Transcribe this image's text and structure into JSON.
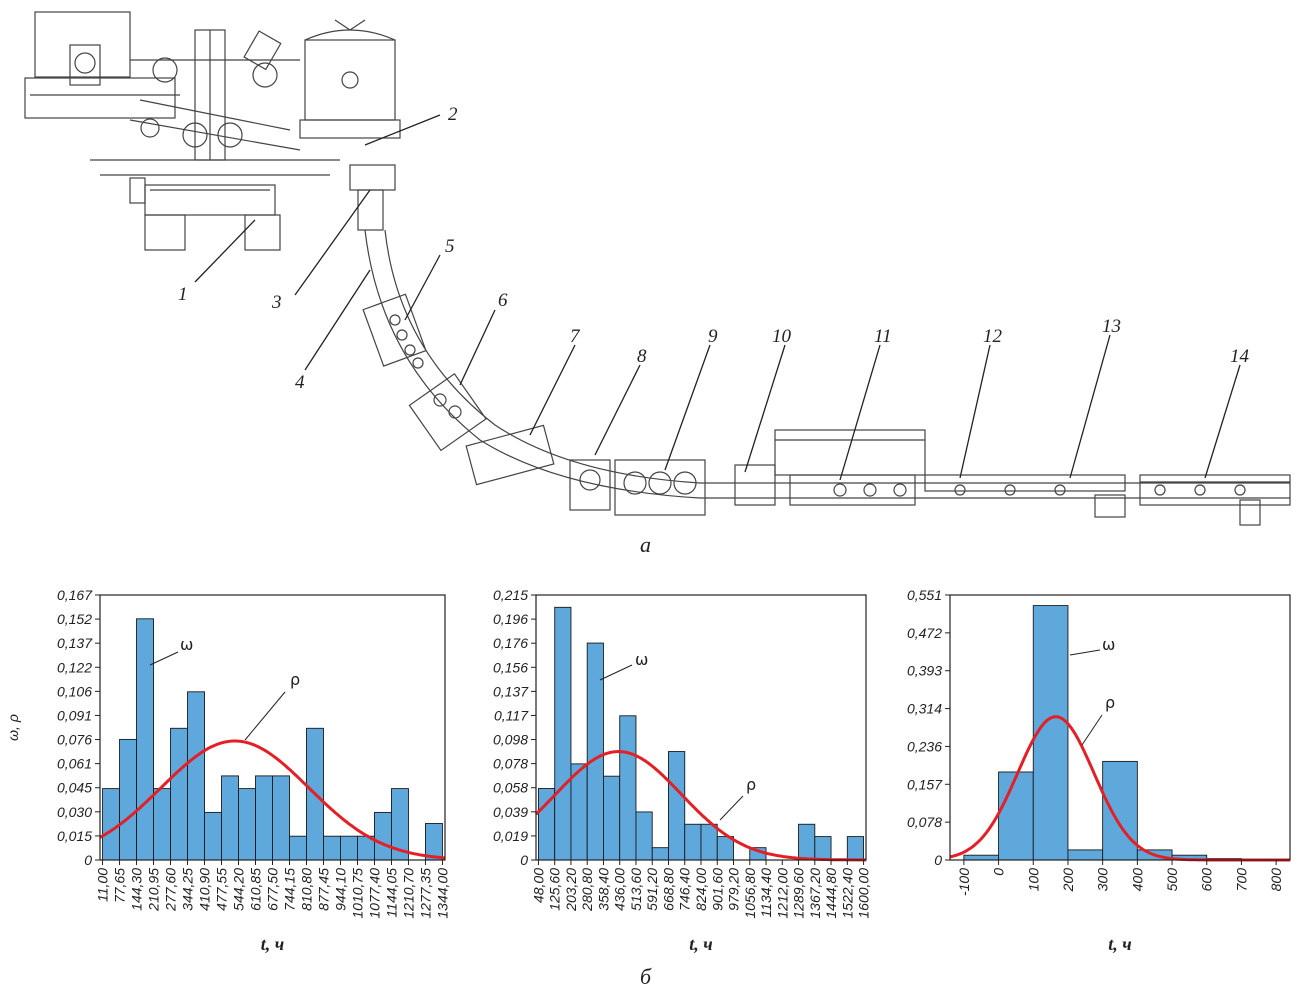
{
  "scheme": {
    "panel_label": "а",
    "callouts": [
      "1",
      "2",
      "3",
      "4",
      "5",
      "6",
      "7",
      "8",
      "9",
      "10",
      "11",
      "12",
      "13",
      "14"
    ]
  },
  "panel_b_label": "б",
  "colors": {
    "bars": "#5fa8dc",
    "bar_stroke": "#1a1a1a",
    "curve": "#e41f26",
    "axes": "#222222"
  },
  "chart_data": [
    {
      "type": "bar",
      "ylabel": "ω, ρ",
      "xlabel": "t, ч",
      "ylim": [
        0,
        0.167
      ],
      "yticks": [
        "0",
        "0,015",
        "0,030",
        "0,045",
        "0,061",
        "0,076",
        "0,091",
        "0,106",
        "0,122",
        "0,137",
        "0,152",
        "0,167"
      ],
      "xticks": [
        "11,00",
        "77,65",
        "144,30",
        "210,95",
        "277,60",
        "344,25",
        "410,90",
        "477,55",
        "544,20",
        "610,85",
        "677,50",
        "744,15",
        "810,80",
        "877,45",
        "944,10",
        "1010,75",
        "1077,40",
        "1144,05",
        "1210,70",
        "1277,35",
        "1344,00"
      ],
      "series": [
        {
          "name": "ω",
          "values": [
            0.045,
            0.076,
            0.152,
            0.045,
            0.083,
            0.106,
            0.03,
            0.053,
            0.045,
            0.053,
            0.053,
            0.015,
            0.083,
            0.015,
            0.015,
            0.015,
            0.03,
            0.045,
            0,
            0.023
          ]
        }
      ],
      "curve": {
        "name": "ρ",
        "mean": 530,
        "sd": 290,
        "peak": 0.075
      }
    },
    {
      "type": "bar",
      "ylabel": "",
      "xlabel": "t, ч",
      "ylim": [
        0,
        0.215
      ],
      "yticks": [
        "0",
        "0,019",
        "0,039",
        "0,058",
        "0,078",
        "0,098",
        "0,117",
        "0,137",
        "0,156",
        "0,176",
        "0,196",
        "0,215"
      ],
      "xticks": [
        "48,00",
        "125,60",
        "203,20",
        "280,80",
        "358,40",
        "436,00",
        "513,60",
        "591,20",
        "668,80",
        "746,40",
        "824,00",
        "901,60",
        "979,20",
        "1056,80",
        "1134,40",
        "1212,00",
        "1289,60",
        "1367,20",
        "1444,80",
        "1522,40",
        "1600,00"
      ],
      "series": [
        {
          "name": "ω",
          "values": [
            0.058,
            0.205,
            0.078,
            0.176,
            0.068,
            0.117,
            0.039,
            0.01,
            0.088,
            0.029,
            0.029,
            0.019,
            0,
            0.01,
            0,
            0,
            0.029,
            0.019,
            0,
            0.019
          ]
        }
      ],
      "curve": {
        "name": "ρ",
        "mean": 430,
        "sd": 300,
        "peak": 0.088
      }
    },
    {
      "type": "bar",
      "ylabel": "",
      "xlabel": "t, ч",
      "ylim": [
        0,
        0.551
      ],
      "xlim": [
        -140,
        840
      ],
      "yticks": [
        "0",
        "0,078",
        "0,157",
        "0,236",
        "0,314",
        "0,393",
        "0,472",
        "0,551"
      ],
      "xticks": [
        "-100",
        "0",
        "100",
        "200",
        "300",
        "400",
        "500",
        "600",
        "700",
        "800"
      ],
      "bin_edges": [
        -100,
        0,
        100,
        200,
        300,
        400,
        500,
        600,
        700
      ],
      "series": [
        {
          "name": "ω",
          "values": [
            0.01,
            0.183,
            0.529,
            0.021,
            0.205,
            0.021,
            0.01,
            0.003
          ]
        }
      ],
      "curve": {
        "name": "ρ",
        "mean": 165,
        "sd": 110,
        "peak": 0.298
      }
    }
  ]
}
